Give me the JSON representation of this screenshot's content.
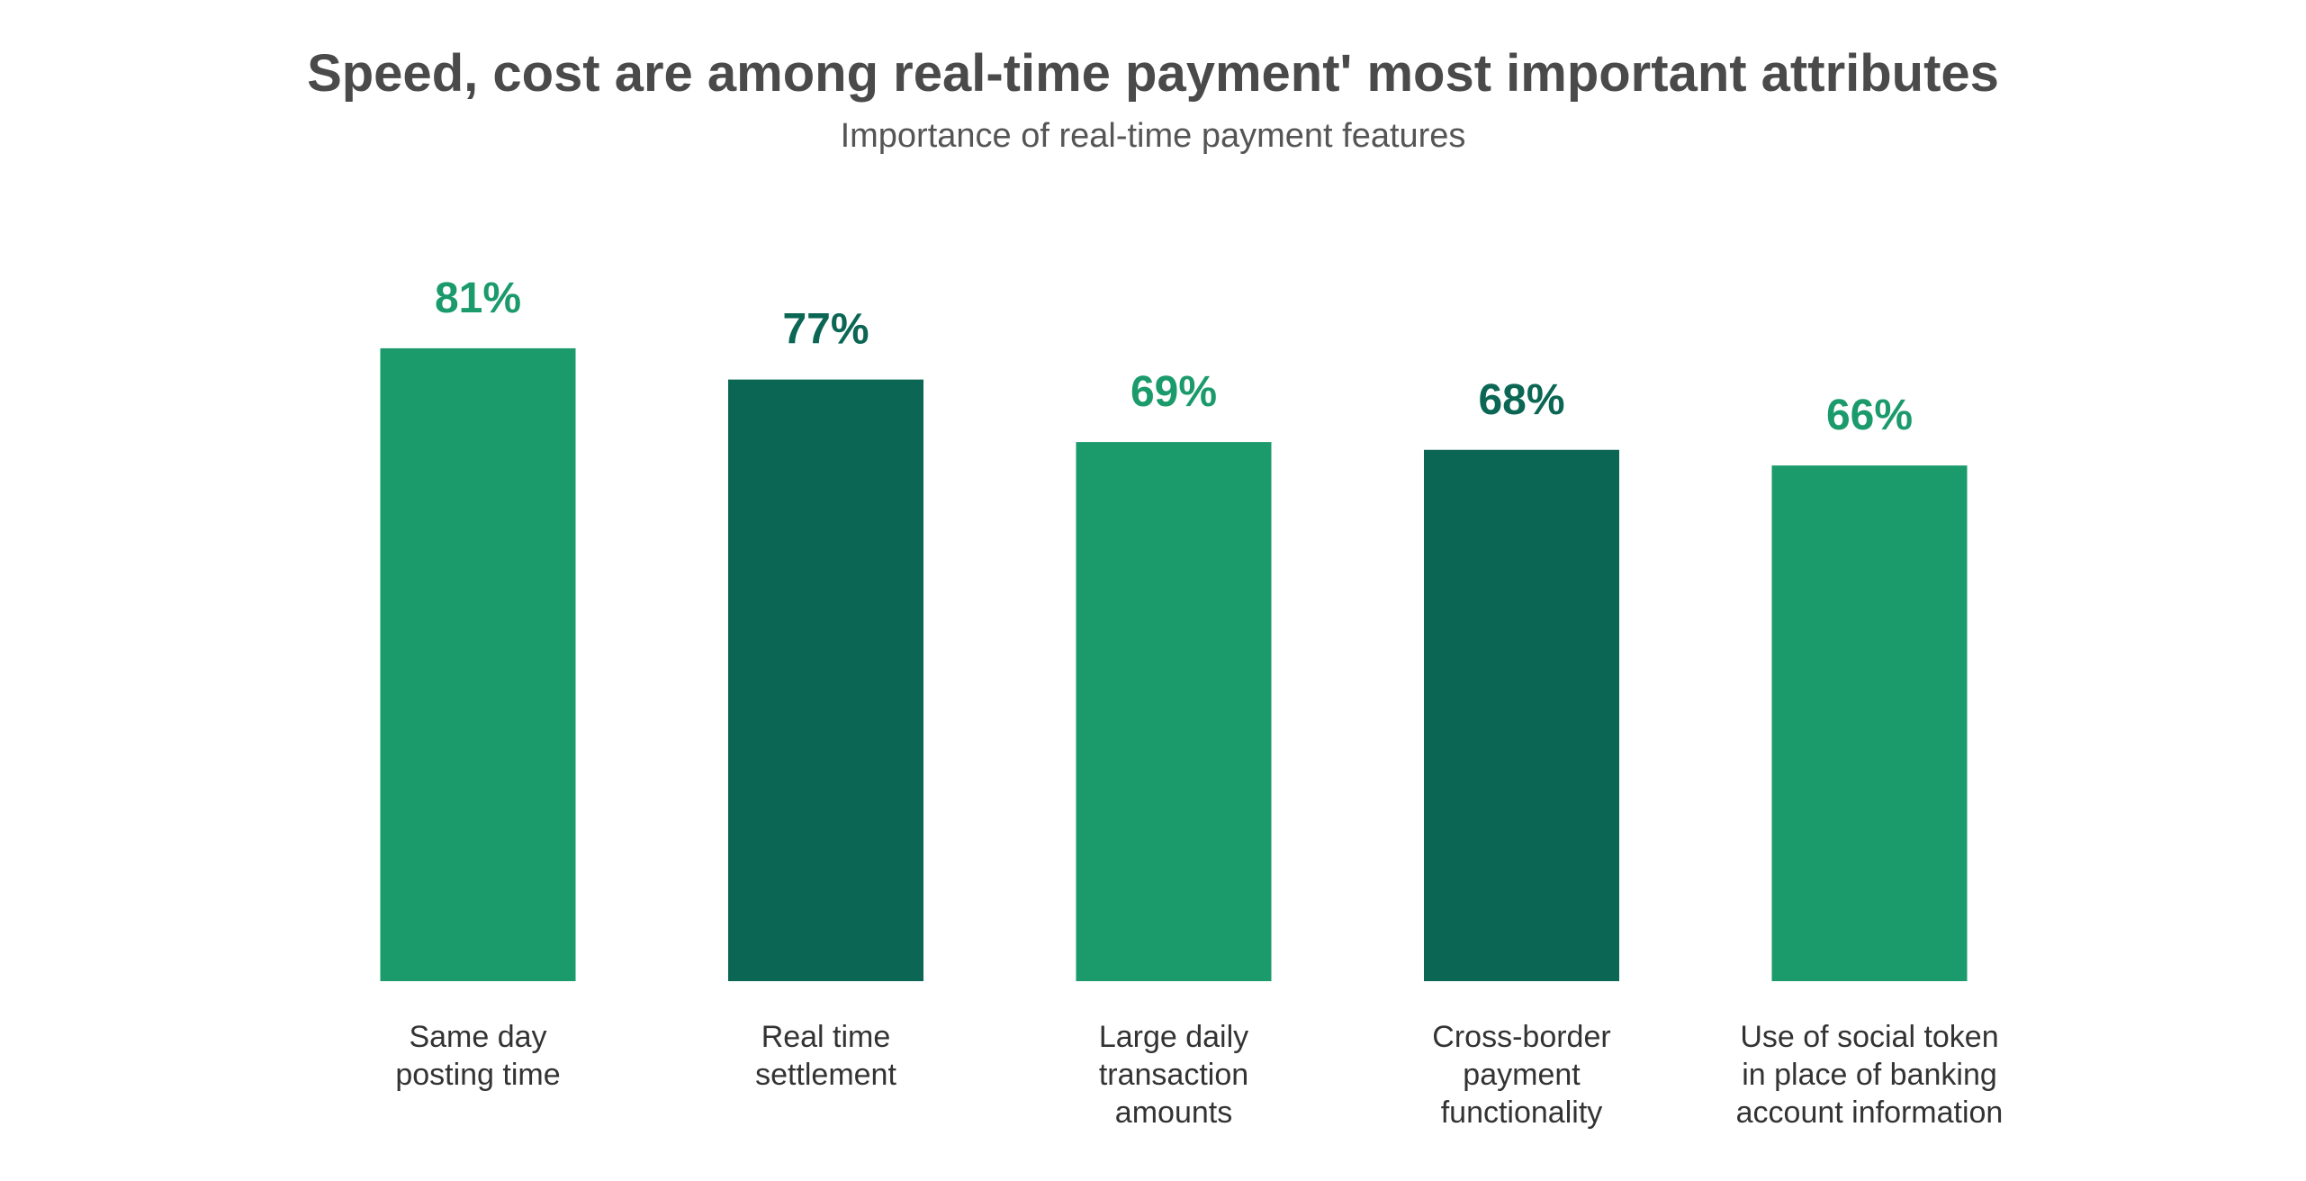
{
  "chart_data": {
    "type": "bar",
    "title": "Speed, cost are among real-time payment' most important attributes",
    "subtitle": "Importance of real-time payment features",
    "categories": [
      [
        "Same day",
        "posting time"
      ],
      [
        "Real time",
        "settlement"
      ],
      [
        "Large daily",
        "transaction",
        "amounts"
      ],
      [
        "Cross-border",
        "payment",
        "functionality"
      ],
      [
        "Use of social token",
        "in place of banking",
        "account information"
      ]
    ],
    "values": [
      81,
      77,
      69,
      68,
      66
    ],
    "value_labels": [
      "81%",
      "77%",
      "69%",
      "68%",
      "66%"
    ],
    "ylim": [
      0,
      100
    ],
    "grid": false,
    "colors": [
      "#1b9a6c",
      "#0b6654",
      "#1b9a6c",
      "#0b6654",
      "#1b9a6c"
    ]
  }
}
